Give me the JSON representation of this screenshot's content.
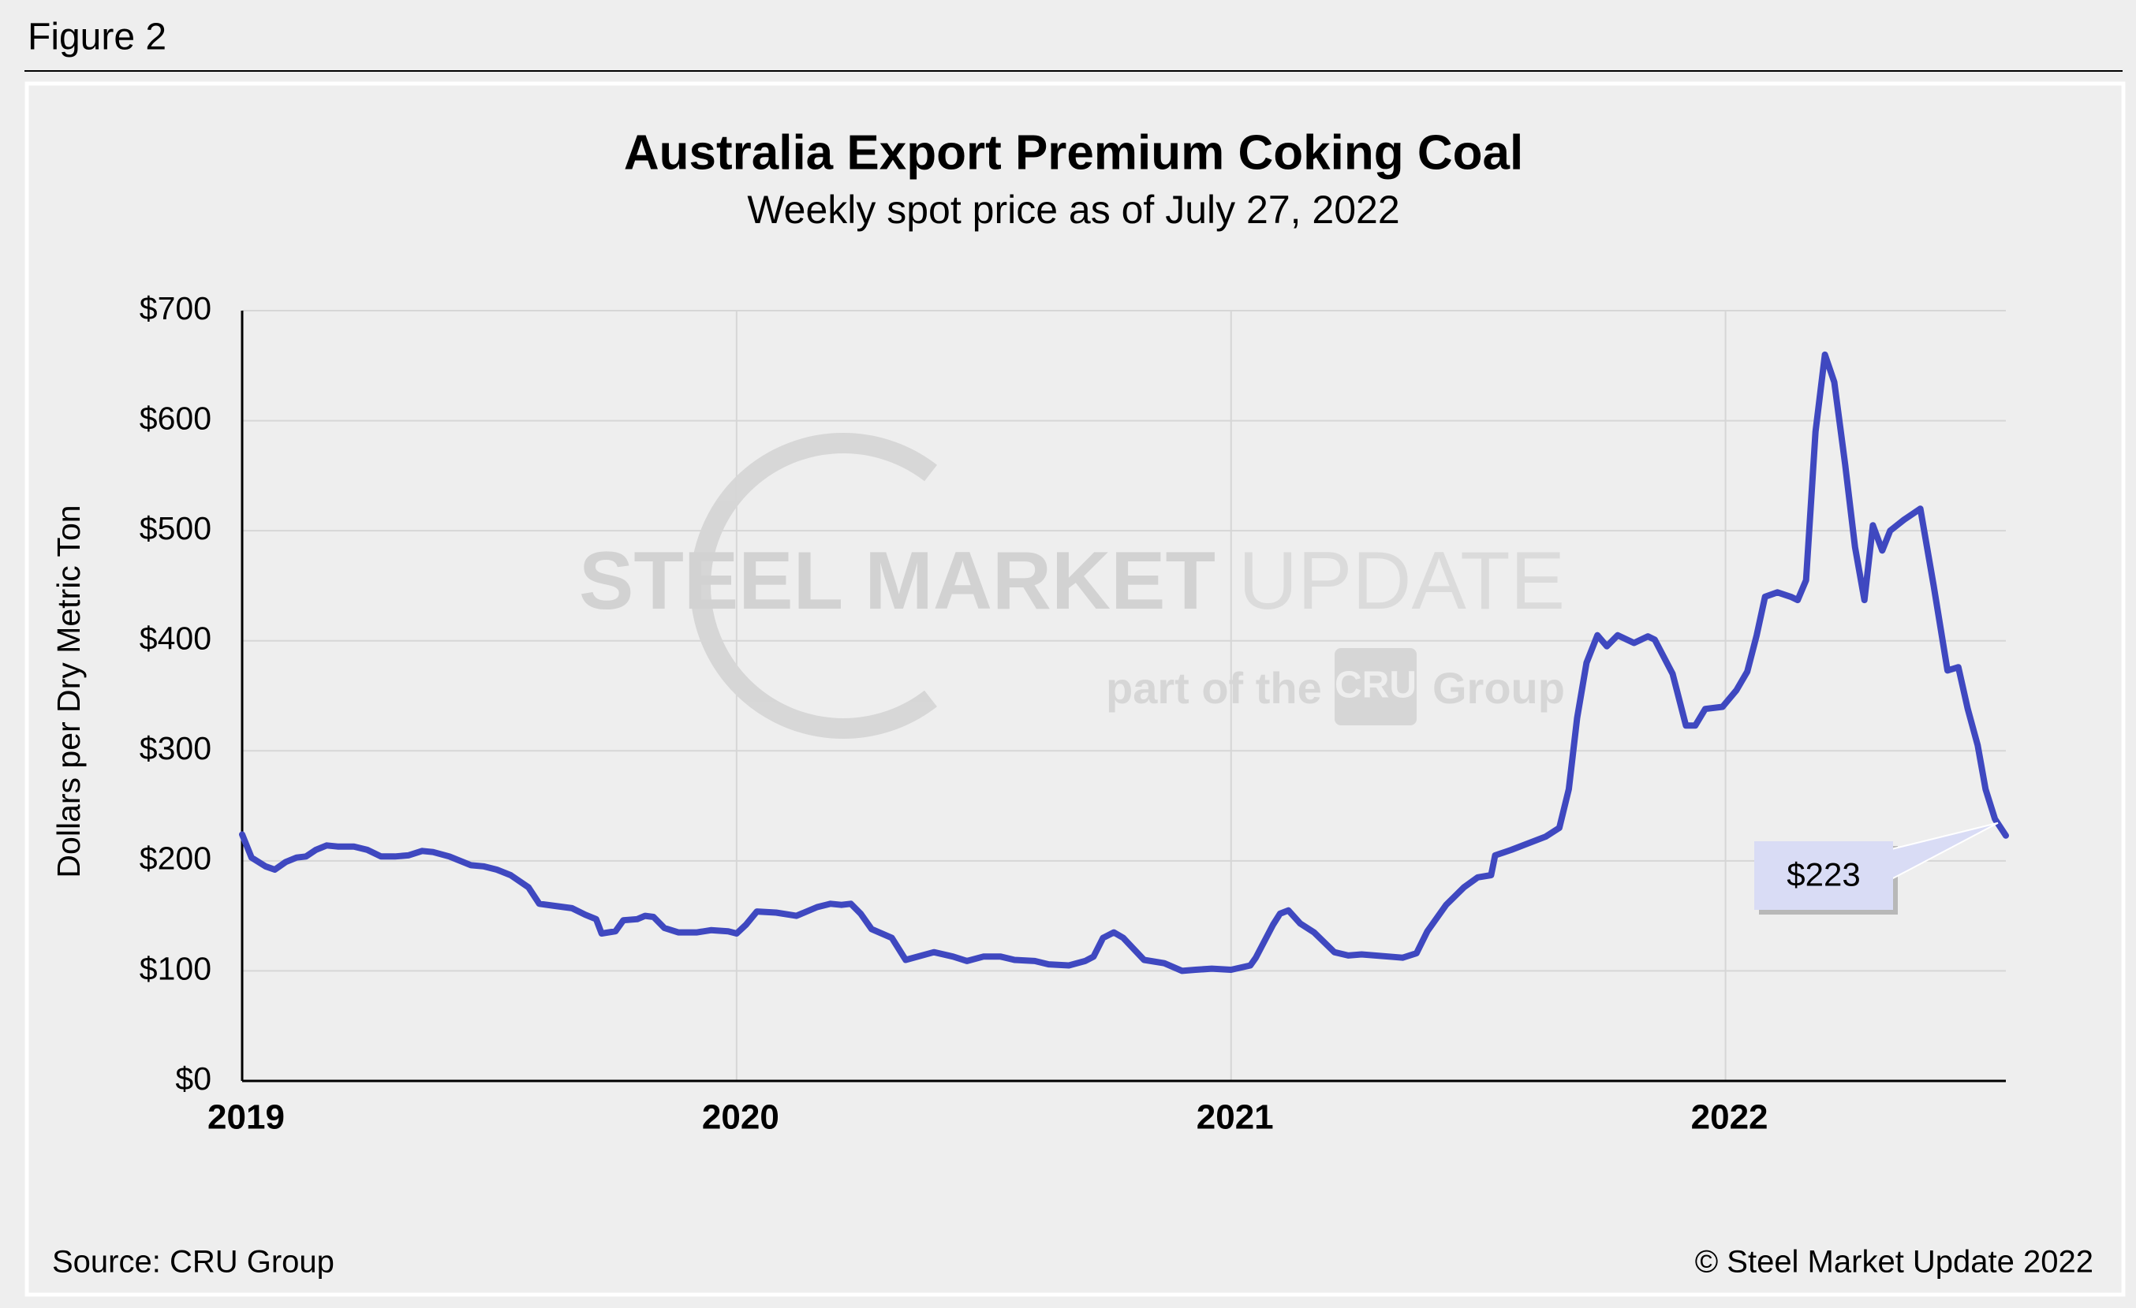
{
  "figure_label": "Figure 2",
  "chart_data": {
    "type": "line",
    "title": "Australia Export Premium Coking Coal",
    "subtitle": "Weekly spot price as of July 27, 2022",
    "y_label": "Dollars per Dry Metric Ton",
    "x": [
      2019.0,
      2019.019,
      2019.047,
      2019.066,
      2019.088,
      2019.11,
      2019.129,
      2019.149,
      2019.171,
      2019.193,
      2019.226,
      2019.253,
      2019.281,
      2019.309,
      2019.336,
      2019.364,
      2019.386,
      2019.419,
      2019.463,
      2019.488,
      2019.515,
      2019.543,
      2019.579,
      2019.601,
      2019.634,
      2019.667,
      2019.694,
      2019.716,
      2019.727,
      2019.755,
      2019.771,
      2019.799,
      2019.815,
      2019.832,
      2019.854,
      2019.882,
      2019.92,
      2019.948,
      2019.983,
      2020.0,
      2020.019,
      2020.041,
      2020.08,
      2020.121,
      2020.163,
      2020.19,
      2020.212,
      2020.231,
      2020.251,
      2020.273,
      2020.314,
      2020.342,
      2020.399,
      2020.438,
      2020.466,
      2020.499,
      2020.534,
      2020.562,
      2020.603,
      2020.631,
      2020.672,
      2020.705,
      2020.722,
      2020.741,
      2020.763,
      2020.782,
      2020.824,
      2020.865,
      2020.901,
      2020.928,
      2020.961,
      2021.0,
      2021.039,
      2021.05,
      2021.085,
      2021.099,
      2021.116,
      2021.14,
      2021.168,
      2021.209,
      2021.237,
      2021.264,
      2021.32,
      2021.347,
      2021.375,
      2021.397,
      2021.435,
      2021.471,
      2021.499,
      2021.526,
      2021.534,
      2021.567,
      2021.636,
      2021.664,
      2021.683,
      2021.7,
      2021.719,
      2021.741,
      2021.76,
      2021.782,
      2021.815,
      2021.843,
      2021.857,
      2021.893,
      2021.92,
      2021.939,
      2021.959,
      2021.994,
      2022.022,
      2022.044,
      2022.063,
      2022.08,
      2022.105,
      2022.132,
      2022.146,
      2022.163,
      2022.182,
      2022.201,
      2022.22,
      2022.242,
      2022.262,
      2022.281,
      2022.298,
      2022.317,
      2022.333,
      2022.361,
      2022.394,
      2022.421,
      2022.449,
      2022.471,
      2022.49,
      2022.51,
      2022.526,
      2022.545,
      2022.567
    ],
    "series": [
      {
        "name": "Premium coking coal",
        "color": "#3f48c0",
        "values": [
          224,
          203,
          195,
          192,
          199,
          203,
          204,
          210,
          214,
          213,
          213,
          210,
          204,
          204,
          205,
          209,
          208,
          204,
          196,
          195,
          192,
          187,
          176,
          161,
          159,
          157,
          151,
          147,
          134,
          136,
          146,
          147,
          150,
          149,
          139,
          135,
          135,
          137,
          136,
          134,
          142,
          154,
          153,
          150,
          158,
          161,
          160,
          161,
          152,
          138,
          130,
          110,
          117,
          113,
          109,
          113,
          113,
          110,
          109,
          106,
          105,
          109,
          113,
          130,
          135,
          130,
          110,
          107,
          100,
          101,
          102,
          101,
          105,
          112,
          142,
          152,
          155,
          143,
          135,
          117,
          114,
          115,
          113,
          112,
          116,
          136,
          160,
          176,
          185,
          187,
          205,
          210,
          222,
          230,
          265,
          330,
          380,
          405,
          395,
          405,
          398,
          404,
          401,
          370,
          323,
          323,
          338,
          340,
          355,
          372,
          405,
          440,
          444,
          440,
          437,
          455,
          590,
          660,
          635,
          560,
          485,
          437,
          505,
          482,
          500,
          510,
          520,
          450,
          373,
          376,
          338,
          305,
          265,
          238,
          223
        ]
      }
    ],
    "xlim": [
      2019,
      2022.567
    ],
    "xticks": [
      2019,
      2020,
      2021,
      2022
    ],
    "ylim": [
      0,
      700
    ],
    "yticks": [
      {
        "value": 0,
        "label": "$0"
      },
      {
        "value": 100,
        "label": "$100"
      },
      {
        "value": 200,
        "label": "$200"
      },
      {
        "value": 300,
        "label": "$300"
      },
      {
        "value": 400,
        "label": "$400"
      },
      {
        "value": 500,
        "label": "$500"
      },
      {
        "value": 600,
        "label": "$600"
      },
      {
        "value": 700,
        "label": "$700"
      }
    ],
    "grid": true,
    "annotation": {
      "label": "$223",
      "value": 223
    },
    "watermark": [
      "STEEL",
      "MARKET",
      "UPDATE",
      "part of the",
      "CRU",
      "Group"
    ],
    "source": "Source: CRU Group",
    "copyright": "© Steel Market Update 2022"
  }
}
